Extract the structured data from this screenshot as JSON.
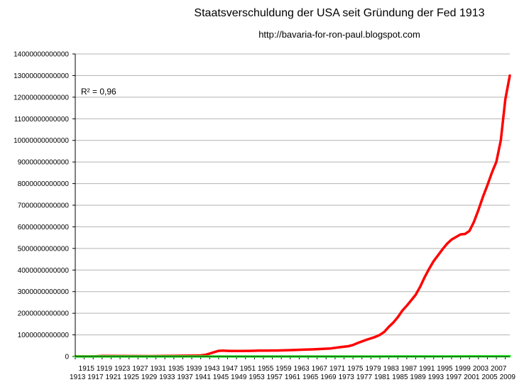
{
  "chart_data": {
    "type": "line",
    "title": "Staatsverschuldung der USA seit Gründung der Fed 1913",
    "subtitle": "http://bavaria-for-ron-paul.blogspot.com",
    "annotation": "R² = 0,96",
    "ylim": [
      0,
      14000000000000
    ],
    "y_ticks": [
      "0",
      "1000000000000",
      "2000000000000",
      "3000000000000",
      "4000000000000",
      "5000000000000",
      "6000000000000",
      "7000000000000",
      "8000000000000",
      "9000000000000",
      "10000000000000",
      "11000000000000",
      "12000000000000",
      "13000000000000",
      "14000000000000"
    ],
    "x_tick_labels": [
      "1913",
      "1915",
      "1917",
      "1919",
      "1921",
      "1923",
      "1925",
      "1927",
      "1929",
      "1931",
      "1933",
      "1935",
      "1937",
      "1939",
      "1941",
      "1943",
      "1945",
      "1947",
      "1949",
      "1951",
      "1953",
      "1955",
      "1957",
      "1959",
      "1961",
      "1963",
      "1965",
      "1967",
      "1969",
      "1971",
      "1973",
      "1975",
      "1977",
      "1979",
      "1981",
      "1983",
      "1985",
      "1987",
      "1989",
      "1991",
      "1993",
      "1995",
      "1997",
      "1999",
      "2001",
      "2003",
      "2005",
      "2007",
      "2009"
    ],
    "grid": true,
    "series": [
      {
        "color": "#ff0000",
        "points": [
          [
            1913,
            3000000000
          ],
          [
            1916,
            3000000000
          ],
          [
            1917,
            3000000000
          ],
          [
            1918,
            12000000000
          ],
          [
            1919,
            25000000000
          ],
          [
            1920,
            24000000000
          ],
          [
            1925,
            21000000000
          ],
          [
            1930,
            16000000000
          ],
          [
            1933,
            22000000000
          ],
          [
            1935,
            28000000000
          ],
          [
            1938,
            37000000000
          ],
          [
            1940,
            43000000000
          ],
          [
            1941,
            49000000000
          ],
          [
            1942,
            72000000000
          ],
          [
            1943,
            136000000000
          ],
          [
            1944,
            200000000000
          ],
          [
            1945,
            258000000000
          ],
          [
            1946,
            269000000000
          ],
          [
            1947,
            258000000000
          ],
          [
            1948,
            252000000000
          ],
          [
            1950,
            257000000000
          ],
          [
            1952,
            259000000000
          ],
          [
            1954,
            271000000000
          ],
          [
            1956,
            272000000000
          ],
          [
            1958,
            276000000000
          ],
          [
            1960,
            286000000000
          ],
          [
            1962,
            298000000000
          ],
          [
            1964,
            316000000000
          ],
          [
            1966,
            328000000000
          ],
          [
            1968,
            347000000000
          ],
          [
            1970,
            370000000000
          ],
          [
            1972,
            427000000000
          ],
          [
            1974,
            475000000000
          ],
          [
            1975,
            533000000000
          ],
          [
            1976,
            620000000000
          ],
          [
            1978,
            771000000000
          ],
          [
            1980,
            907000000000
          ],
          [
            1981,
            998000000000
          ],
          [
            1982,
            1140000000000
          ],
          [
            1983,
            1370000000000
          ],
          [
            1984,
            1570000000000
          ],
          [
            1985,
            1820000000000
          ],
          [
            1986,
            2120000000000
          ],
          [
            1987,
            2350000000000
          ],
          [
            1988,
            2600000000000
          ],
          [
            1989,
            2860000000000
          ],
          [
            1990,
            3230000000000
          ],
          [
            1991,
            3670000000000
          ],
          [
            1992,
            4060000000000
          ],
          [
            1993,
            4410000000000
          ],
          [
            1994,
            4690000000000
          ],
          [
            1995,
            4970000000000
          ],
          [
            1996,
            5220000000000
          ],
          [
            1997,
            5410000000000
          ],
          [
            1998,
            5530000000000
          ],
          [
            1999,
            5650000000000
          ],
          [
            2000,
            5670000000000
          ],
          [
            2001,
            5810000000000
          ],
          [
            2002,
            6230000000000
          ],
          [
            2003,
            6780000000000
          ],
          [
            2004,
            7380000000000
          ],
          [
            2005,
            7930000000000
          ],
          [
            2006,
            8510000000000
          ],
          [
            2007,
            9010000000000
          ],
          [
            2008,
            10020000000000
          ],
          [
            2009,
            11900000000000
          ],
          [
            2010,
            13000000000000
          ]
        ]
      },
      {
        "color": "#33ff33",
        "points": [
          [
            1913,
            800000
          ],
          [
            1920,
            1900000
          ],
          [
            1925,
            3000000
          ],
          [
            1930,
            5000000
          ],
          [
            1935,
            9000000
          ],
          [
            1940,
            18000000
          ],
          [
            1945,
            40000000
          ],
          [
            1950,
            88000000
          ],
          [
            1955,
            165000000
          ],
          [
            1960,
            255000000
          ],
          [
            1965,
            375000000
          ],
          [
            1970,
            560000000
          ],
          [
            1975,
            850000000
          ],
          [
            1980,
            1300000000
          ],
          [
            1985,
            1950000000
          ],
          [
            1990,
            2950000000
          ],
          [
            1995,
            4450000000
          ],
          [
            2000,
            6600000000
          ],
          [
            2005,
            9700000000
          ],
          [
            2010,
            12800000000
          ]
        ]
      }
    ]
  }
}
